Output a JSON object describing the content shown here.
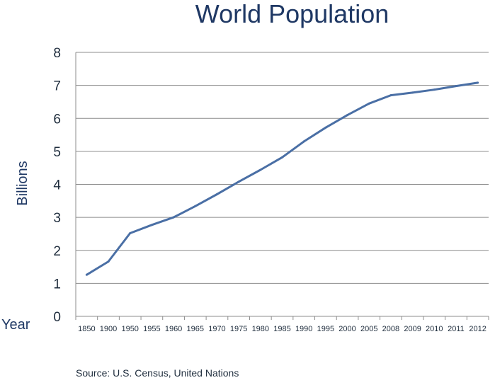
{
  "chart_data": {
    "type": "line",
    "title": "World Population",
    "xlabel": "Year",
    "ylabel": "Billions",
    "categories": [
      "1850",
      "1900",
      "1950",
      "1955",
      "1960",
      "1965",
      "1970",
      "1975",
      "1980",
      "1985",
      "1990",
      "1995",
      "2000",
      "2005",
      "2008",
      "2009",
      "2010",
      "2011",
      "2012"
    ],
    "series": [
      {
        "values": [
          1.26,
          1.66,
          2.52,
          2.77,
          3.0,
          3.34,
          3.7,
          4.08,
          4.44,
          4.82,
          5.3,
          5.72,
          6.1,
          6.45,
          6.7,
          6.78,
          6.87,
          6.98,
          7.08
        ]
      }
    ],
    "ylim": [
      0,
      8
    ],
    "yticks": [
      "0",
      "1",
      "2",
      "3",
      "4",
      "5",
      "6",
      "7",
      "8"
    ],
    "grid": true,
    "line_color": "#4a6fa5",
    "source": "Source: U.S. Census, United Nations"
  }
}
